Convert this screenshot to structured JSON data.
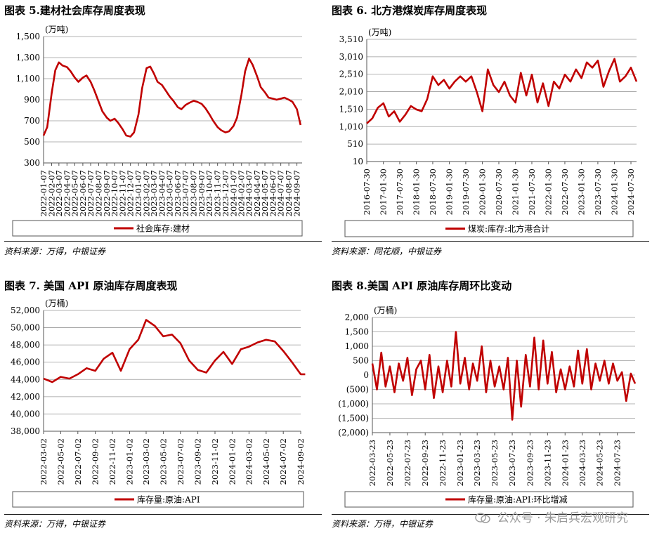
{
  "panels": [
    {
      "id": "p5",
      "title": "图表 5.建材社会库存周度表现",
      "source": "资料来源：万得，中银证券",
      "unit": "(万吨)",
      "legend": "社会库存:建材",
      "chart_data": {
        "type": "line",
        "ylim": [
          300,
          1500
        ],
        "yticks": [
          300,
          500,
          700,
          900,
          1100,
          1300,
          1500
        ],
        "ytick_labels": [
          "300",
          "500",
          "700",
          "900",
          "1,100",
          "1,300",
          "1,500"
        ],
        "xlim": [
          "2022-01-07",
          "2024-09-27"
        ],
        "xticks": [
          "2022-01-07",
          "2022-02-07",
          "2022-03-07",
          "2022-04-07",
          "2022-05-07",
          "2022-06-07",
          "2022-07-07",
          "2022-08-07",
          "2022-09-07",
          "2022-10-07",
          "2022-11-07",
          "2022-12-07",
          "2023-01-07",
          "2023-02-07",
          "2023-03-07",
          "2023-04-07",
          "2023-05-07",
          "2023-06-07",
          "2023-07-07",
          "2023-08-07",
          "2023-09-07",
          "2023-10-07",
          "2023-11-07",
          "2023-12-07",
          "2024-01-07",
          "2024-02-07",
          "2024-03-07",
          "2024-04-07",
          "2024-05-07",
          "2024-06-07",
          "2024-07-07",
          "2024-08-07",
          "2024-09-07"
        ],
        "grid": true,
        "legend_position": "bottom",
        "series": [
          {
            "name": "社会库存:建材",
            "color": "#c00000",
            "x": [
              "2022-01-07",
              "2022-01-21",
              "2022-02-07",
              "2022-02-21",
              "2022-03-07",
              "2022-03-21",
              "2022-04-07",
              "2022-04-21",
              "2022-05-07",
              "2022-05-21",
              "2022-06-07",
              "2022-06-21",
              "2022-07-07",
              "2022-07-21",
              "2022-08-07",
              "2022-08-21",
              "2022-09-07",
              "2022-09-21",
              "2022-10-07",
              "2022-10-21",
              "2022-11-07",
              "2022-11-21",
              "2022-12-07",
              "2022-12-21",
              "2023-01-07",
              "2023-01-21",
              "2023-02-07",
              "2023-02-21",
              "2023-03-07",
              "2023-03-21",
              "2023-04-07",
              "2023-04-21",
              "2023-05-07",
              "2023-05-21",
              "2023-06-07",
              "2023-06-21",
              "2023-07-07",
              "2023-07-21",
              "2023-08-07",
              "2023-08-21",
              "2023-09-07",
              "2023-09-21",
              "2023-10-07",
              "2023-10-21",
              "2023-11-07",
              "2023-11-21",
              "2023-12-07",
              "2023-12-21",
              "2024-01-07",
              "2024-01-21",
              "2024-02-07",
              "2024-02-21",
              "2024-03-07",
              "2024-03-21",
              "2024-04-07",
              "2024-04-21",
              "2024-05-07",
              "2024-05-21",
              "2024-06-07",
              "2024-06-21",
              "2024-07-07",
              "2024-07-21",
              "2024-08-07",
              "2024-08-21",
              "2024-09-07",
              "2024-09-21"
            ],
            "y": [
              560,
              640,
              960,
              1180,
              1255,
              1225,
              1210,
              1170,
              1110,
              1070,
              1110,
              1130,
              1070,
              990,
              880,
              790,
              730,
              700,
              720,
              680,
              620,
              560,
              550,
              590,
              760,
              1010,
              1200,
              1215,
              1150,
              1070,
              1040,
              990,
              930,
              890,
              830,
              810,
              850,
              870,
              890,
              880,
              860,
              820,
              760,
              700,
              640,
              610,
              590,
              600,
              650,
              730,
              950,
              1170,
              1290,
              1230,
              1120,
              1020,
              970,
              920,
              910,
              900,
              910,
              920,
              900,
              880,
              810,
              660
            ]
          }
        ]
      }
    },
    {
      "id": "p6",
      "title": "图表 6. 北方港煤炭库存周度表现",
      "source": "资料来源：同花顺，中银证券",
      "unit": "(万吨)",
      "legend": "煤炭:库存:北方港合计",
      "chart_data": {
        "type": "line",
        "ylim": [
          10,
          3510
        ],
        "yticks": [
          10,
          510,
          1010,
          1510,
          2010,
          2510,
          3010,
          3510
        ],
        "ytick_labels": [
          "10",
          "510",
          "1,010",
          "1,510",
          "2,010",
          "2,510",
          "3,010",
          "3,510"
        ],
        "xlim": [
          "2016-07-30",
          "2024-09-30"
        ],
        "xticks": [
          "2016-07-30",
          "2017-01-30",
          "2017-07-30",
          "2018-01-30",
          "2018-07-30",
          "2019-01-30",
          "2019-07-30",
          "2020-01-30",
          "2020-07-30",
          "2021-01-30",
          "2021-07-30",
          "2022-01-30",
          "2022-07-30",
          "2023-01-30",
          "2023-07-30",
          "2024-01-30",
          "2024-07-30"
        ],
        "grid": true,
        "legend_position": "bottom",
        "series": [
          {
            "name": "煤炭:库存:北方港合计",
            "color": "#c00000",
            "x": [
              "2016-07-30",
              "2016-09-30",
              "2016-11-30",
              "2017-01-30",
              "2017-03-30",
              "2017-05-30",
              "2017-07-30",
              "2017-09-30",
              "2017-11-30",
              "2018-01-30",
              "2018-03-30",
              "2018-05-30",
              "2018-07-30",
              "2018-09-30",
              "2018-11-30",
              "2019-01-30",
              "2019-03-30",
              "2019-05-30",
              "2019-07-30",
              "2019-09-30",
              "2019-11-30",
              "2020-01-30",
              "2020-03-30",
              "2020-05-30",
              "2020-07-30",
              "2020-09-30",
              "2020-11-30",
              "2021-01-30",
              "2021-03-30",
              "2021-05-30",
              "2021-07-30",
              "2021-09-30",
              "2021-11-30",
              "2022-01-30",
              "2022-03-30",
              "2022-05-30",
              "2022-07-30",
              "2022-09-30",
              "2022-11-30",
              "2023-01-30",
              "2023-03-30",
              "2023-05-30",
              "2023-07-30",
              "2023-09-30",
              "2023-11-30",
              "2024-01-30",
              "2024-03-30",
              "2024-05-30",
              "2024-07-30",
              "2024-09-30"
            ],
            "y": [
              1100,
              1250,
              1550,
              1680,
              1300,
              1450,
              1150,
              1350,
              1600,
              1500,
              1450,
              1800,
              2450,
              2200,
              2350,
              2100,
              2300,
              2450,
              2300,
              2450,
              2000,
              1450,
              2650,
              2200,
              2000,
              2300,
              1900,
              1700,
              2550,
              1900,
              2500,
              1700,
              2250,
              1600,
              2300,
              2100,
              2500,
              2300,
              2650,
              2400,
              2850,
              2700,
              2900,
              2150,
              2600,
              2950,
              2300,
              2450,
              2700,
              2300
            ]
          }
        ]
      }
    },
    {
      "id": "p7",
      "title": "图表 7. 美国 API 原油库存周度表现",
      "source": "资料来源：万得，中银证券",
      "unit": "(万桶)",
      "legend": "库存量:原油:API",
      "chart_data": {
        "type": "line",
        "ylim": [
          38000,
          52000
        ],
        "yticks": [
          38000,
          40000,
          42000,
          44000,
          46000,
          48000,
          50000,
          52000
        ],
        "ytick_labels": [
          "38,000",
          "40,000",
          "42,000",
          "44,000",
          "46,000",
          "48,000",
          "50,000",
          "52,000"
        ],
        "xlim": [
          "2022-03-02",
          "2024-09-02"
        ],
        "xticks": [
          "2022-03-02",
          "2022-05-02",
          "2022-07-02",
          "2022-09-02",
          "2022-11-02",
          "2023-01-02",
          "2023-03-02",
          "2023-05-02",
          "2023-07-02",
          "2023-09-02",
          "2023-11-02",
          "2024-01-02",
          "2024-03-02",
          "2024-05-02",
          "2024-07-02",
          "2024-09-02"
        ],
        "grid": true,
        "legend_position": "bottom",
        "series": [
          {
            "name": "库存量:原油:API",
            "color": "#c00000",
            "x": [
              "2022-03-02",
              "2022-04-02",
              "2022-05-02",
              "2022-06-02",
              "2022-07-02",
              "2022-08-02",
              "2022-09-02",
              "2022-10-02",
              "2022-11-02",
              "2022-12-02",
              "2023-01-02",
              "2023-02-02",
              "2023-03-02",
              "2023-04-02",
              "2023-05-02",
              "2023-06-02",
              "2023-07-02",
              "2023-08-02",
              "2023-09-02",
              "2023-10-02",
              "2023-11-02",
              "2023-12-02",
              "2024-01-02",
              "2024-02-02",
              "2024-03-02",
              "2024-04-02",
              "2024-05-02",
              "2024-06-02",
              "2024-07-02",
              "2024-08-02",
              "2024-09-02",
              "2024-09-18"
            ],
            "y": [
              44100,
              43700,
              44300,
              44100,
              44600,
              45300,
              45000,
              46400,
              47100,
              45000,
              47500,
              48600,
              50900,
              50200,
              49000,
              49200,
              48200,
              46200,
              45100,
              44800,
              46200,
              47200,
              45800,
              47500,
              47800,
              48300,
              48600,
              48400,
              47300,
              46000,
              44600,
              44600
            ]
          }
        ]
      }
    },
    {
      "id": "p8",
      "title": "图表 8.美国 API 原油库存周环比变动",
      "source": "资料来源：万得，中银证券",
      "unit": "(万桶)",
      "legend": "库存量:原油:API:环比增减",
      "chart_data": {
        "type": "line",
        "ylim": [
          -2000,
          2000
        ],
        "yticks": [
          -2000,
          -1500,
          -1000,
          -500,
          0,
          500,
          1000,
          1500,
          2000
        ],
        "ytick_labels": [
          "(2,000)",
          "(1,500)",
          "(1,000)",
          "(500)",
          "0",
          "500",
          "1,000",
          "1,500",
          "2,000"
        ],
        "xlim": [
          "2022-03-23",
          "2024-09-23"
        ],
        "xticks": [
          "2022-03-23",
          "2022-05-23",
          "2022-07-23",
          "2022-09-23",
          "2022-11-23",
          "2023-01-23",
          "2023-03-23",
          "2023-05-23",
          "2023-07-23",
          "2023-09-23",
          "2023-11-23",
          "2024-01-23",
          "2024-03-23",
          "2024-05-23",
          "2024-07-23"
        ],
        "grid": true,
        "legend_position": "bottom",
        "series": [
          {
            "name": "库存量:原油:API:环比增减",
            "color": "#c00000",
            "x": [
              "2022-03-23",
              "2022-04-08",
              "2022-04-23",
              "2022-05-08",
              "2022-05-23",
              "2022-06-08",
              "2022-06-23",
              "2022-07-08",
              "2022-07-23",
              "2022-08-08",
              "2022-08-23",
              "2022-09-08",
              "2022-09-23",
              "2022-10-08",
              "2022-10-23",
              "2022-11-08",
              "2022-11-23",
              "2022-12-08",
              "2022-12-23",
              "2023-01-08",
              "2023-01-23",
              "2023-02-08",
              "2023-02-23",
              "2023-03-08",
              "2023-03-23",
              "2023-04-08",
              "2023-04-23",
              "2023-05-08",
              "2023-05-23",
              "2023-06-08",
              "2023-06-23",
              "2023-07-08",
              "2023-07-23",
              "2023-08-08",
              "2023-08-23",
              "2023-09-08",
              "2023-09-23",
              "2023-10-08",
              "2023-10-23",
              "2023-11-08",
              "2023-11-23",
              "2023-12-08",
              "2023-12-23",
              "2024-01-08",
              "2024-01-23",
              "2024-02-08",
              "2024-02-23",
              "2024-03-08",
              "2024-03-23",
              "2024-04-08",
              "2024-04-23",
              "2024-05-08",
              "2024-05-23",
              "2024-06-08",
              "2024-06-23",
              "2024-07-08",
              "2024-07-23",
              "2024-08-08",
              "2024-08-23",
              "2024-09-08",
              "2024-09-23"
            ],
            "y": [
              400,
              -500,
              780,
              -400,
              300,
              -600,
              400,
              -200,
              600,
              -700,
              200,
              500,
              -500,
              700,
              -800,
              300,
              -600,
              500,
              -400,
              1500,
              -300,
              600,
              -500,
              400,
              -200,
              1000,
              -600,
              500,
              -400,
              300,
              -500,
              600,
              -1550,
              500,
              -1100,
              700,
              -400,
              1300,
              -500,
              1200,
              -300,
              800,
              -600,
              200,
              -500,
              300,
              -400,
              850,
              -300,
              900,
              -500,
              400,
              -200,
              500,
              -300,
              400,
              -200,
              100,
              -900,
              50,
              -300
            ]
          }
        ]
      }
    }
  ],
  "watermark": "公众号 · 朱启兵宏观研究"
}
